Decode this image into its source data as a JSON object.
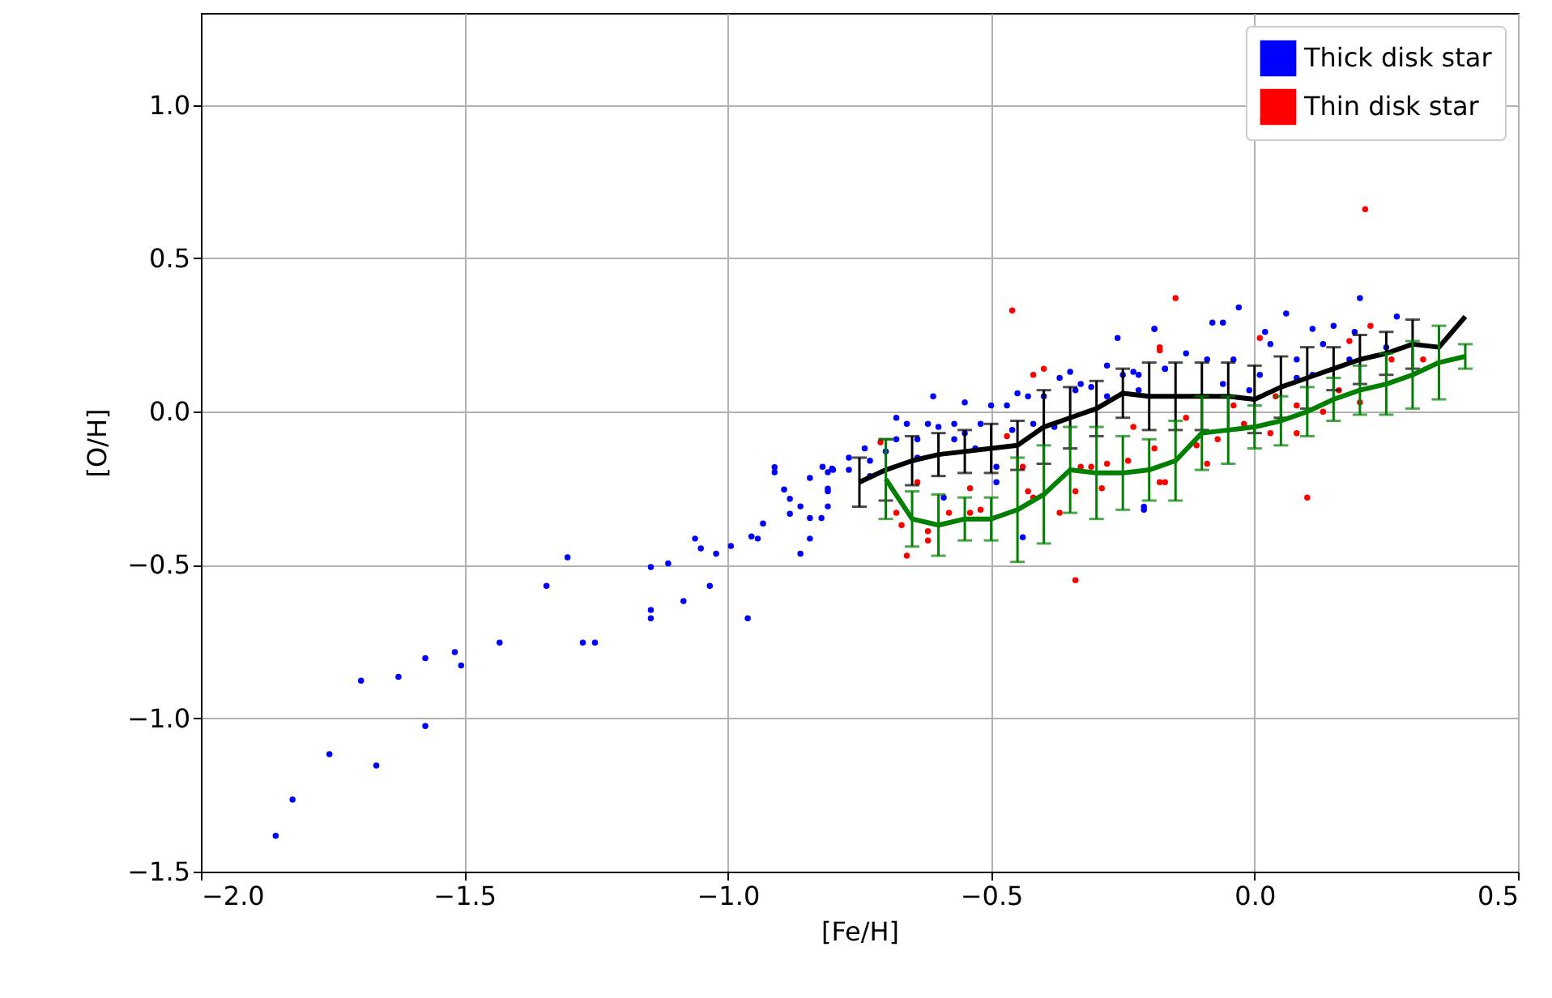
{
  "chart_data": {
    "type": "scatter",
    "xlabel": "[Fe/H]",
    "ylabel": "[O/H]",
    "xlim": [
      -2.0,
      0.5
    ],
    "ylim": [
      -1.5,
      1.3
    ],
    "xticks": [
      {
        "value": -2,
        "label": "−2.0"
      },
      {
        "value": -1.5,
        "label": "−1.5"
      },
      {
        "value": -1,
        "label": "−1.0"
      },
      {
        "value": -0.5,
        "label": "−0.5"
      },
      {
        "value": 0,
        "label": "0.0"
      },
      {
        "value": 0.5,
        "label": "0.5"
      }
    ],
    "yticks": [
      {
        "value": -1.5,
        "label": "−1.5"
      },
      {
        "value": -1,
        "label": "−1.0"
      },
      {
        "value": -0.5,
        "label": "−0.5"
      },
      {
        "value": 0,
        "label": "0.0"
      },
      {
        "value": 0.5,
        "label": "0.5"
      },
      {
        "value": 1,
        "label": "1.0"
      }
    ],
    "grid": true,
    "legend": "top right",
    "series": [
      {
        "name": "Thick disk star",
        "marker": "circle",
        "color": "#0000ff",
        "x": [
          -1.858,
          -1.826,
          -1.756,
          -1.696,
          -1.667,
          -1.625,
          -1.574,
          -1.574,
          -1.518,
          -1.506,
          -1.433,
          -1.344,
          -1.304,
          -1.275,
          -1.252,
          -1.146,
          -1.113,
          -1.146,
          -1.146,
          -1.084,
          -1.062,
          -1.051,
          -1.034,
          -1.022,
          -0.994,
          -0.962,
          -0.955,
          -0.943,
          -0.933,
          -0.911,
          -0.911,
          -0.893,
          -0.882,
          -0.882,
          -0.862,
          -0.862,
          -0.844,
          -0.844,
          -0.844,
          -0.822,
          -0.81,
          -0.81,
          -0.81,
          -0.802,
          -0.82,
          -0.8,
          -0.81,
          -0.77,
          -0.77,
          -0.74,
          -0.73,
          -0.73,
          -0.7,
          -0.68,
          -0.68,
          -0.66,
          -0.64,
          -0.64,
          -0.61,
          -0.62,
          -0.6,
          -0.59,
          -0.57,
          -0.57,
          -0.55,
          -0.55,
          -0.53,
          -0.52,
          -0.5,
          -0.49,
          -0.49,
          -0.47,
          -0.46,
          -0.45,
          -0.44,
          -0.43,
          -0.42,
          -0.4,
          -0.38,
          -0.37,
          -0.35,
          -0.34,
          -0.33,
          -0.31,
          -0.28,
          -0.28,
          -0.26,
          -0.25,
          -0.23,
          -0.22,
          -0.21,
          -0.19,
          -0.17,
          -0.19,
          -0.08,
          -0.06,
          -0.03,
          -0.09,
          -0.04,
          0.02,
          0.03,
          0.06,
          0.11,
          0.15,
          0.2,
          0.27,
          0.19,
          0.08,
          0.13,
          -0.21,
          -0.22,
          -0.17,
          -0.13,
          0.01,
          0.08,
          0.18,
          0.25,
          -0.06,
          -0.01,
          0.11
        ],
        "values": [
          -1.383,
          -1.265,
          -1.117,
          -0.877,
          -1.154,
          -0.865,
          -0.804,
          -1.025,
          -0.784,
          -0.828,
          -0.753,
          -0.568,
          -0.475,
          -0.753,
          -0.753,
          -0.507,
          -0.495,
          -0.647,
          -0.674,
          -0.618,
          -0.414,
          -0.446,
          -0.568,
          -0.463,
          -0.438,
          -0.674,
          -0.407,
          -0.414,
          -0.365,
          -0.181,
          -0.198,
          -0.254,
          -0.284,
          -0.333,
          -0.309,
          -0.463,
          -0.216,
          -0.347,
          -0.414,
          -0.347,
          -0.198,
          -0.251,
          -0.309,
          -0.186,
          -0.18,
          -0.19,
          -0.26,
          -0.15,
          -0.19,
          -0.12,
          -0.16,
          -0.21,
          -0.13,
          -0.09,
          -0.02,
          -0.04,
          -0.09,
          -0.15,
          0.05,
          -0.04,
          -0.05,
          -0.28,
          -0.04,
          -0.09,
          0.03,
          -0.07,
          -0.12,
          -0.04,
          0.02,
          -0.18,
          -0.23,
          0.02,
          -0.06,
          0.06,
          -0.41,
          0.05,
          -0.04,
          0.05,
          -0.05,
          0.11,
          0.13,
          0.07,
          0.09,
          0.08,
          0.15,
          0.05,
          0.24,
          0.12,
          0.13,
          0.07,
          -0.31,
          0.27,
          0.14,
          0.27,
          0.29,
          0.29,
          0.34,
          0.17,
          0.17,
          0.26,
          0.22,
          0.32,
          0.27,
          0.28,
          0.37,
          0.31,
          0.26,
          0.17,
          0.22,
          -0.32,
          0.12,
          0.14,
          0.19,
          0.12,
          0.11,
          0.17,
          0.21,
          0.09,
          0.07,
          0.12
        ]
      },
      {
        "name": "Thin disk star",
        "marker": "circle",
        "color": "#ff0000",
        "x": [
          -0.46,
          -0.42,
          -0.4,
          -0.71,
          -0.68,
          -0.67,
          -0.66,
          -0.64,
          -0.62,
          -0.62,
          -0.58,
          -0.54,
          -0.54,
          -0.52,
          -0.47,
          -0.44,
          -0.43,
          -0.42,
          -0.37,
          -0.34,
          -0.34,
          -0.33,
          -0.31,
          -0.29,
          -0.28,
          -0.24,
          -0.23,
          -0.19,
          -0.18,
          -0.18,
          -0.15,
          0.21,
          0.1,
          0.01,
          0.22,
          0.18,
          -0.18,
          0.26,
          0.32,
          -0.13,
          -0.09,
          -0.07,
          -0.02,
          0.03,
          0.08,
          0.13,
          0.08,
          0.2,
          -0.17,
          -0.11,
          0.04,
          0.16,
          -0.04
        ],
        "values": [
          0.33,
          0.12,
          0.14,
          -0.1,
          -0.33,
          -0.37,
          -0.47,
          -0.23,
          -0.39,
          -0.42,
          -0.33,
          -0.25,
          -0.33,
          -0.32,
          -0.08,
          -0.18,
          -0.26,
          -0.28,
          -0.33,
          -0.55,
          -0.26,
          -0.18,
          -0.18,
          -0.25,
          -0.17,
          -0.16,
          -0.05,
          -0.12,
          0.2,
          -0.23,
          0.37,
          0.66,
          -0.28,
          0.24,
          0.28,
          0.23,
          0.21,
          0.17,
          0.17,
          -0.02,
          -0.17,
          -0.09,
          -0.04,
          -0.07,
          0.02,
          0.0,
          -0.07,
          0.03,
          -0.23,
          -0.11,
          0.05,
          0.07,
          0.02
        ]
      },
      {
        "type": "line",
        "marker": "none",
        "color": "#000000",
        "x": [
          -0.75,
          -0.7,
          -0.65,
          -0.6,
          -0.55,
          -0.5,
          -0.45,
          -0.4,
          -0.35,
          -0.3,
          -0.25,
          -0.2,
          -0.15,
          -0.1,
          -0.05,
          0.0,
          0.05,
          0.1,
          0.15,
          0.2,
          0.25,
          0.3,
          0.35,
          0.4
        ],
        "values": [
          -0.23,
          -0.19,
          -0.16,
          -0.14,
          -0.13,
          -0.12,
          -0.11,
          -0.05,
          -0.02,
          0.01,
          0.06,
          0.05,
          0.05,
          0.05,
          0.05,
          0.04,
          0.08,
          0.11,
          0.14,
          0.17,
          0.19,
          0.22,
          0.21,
          0.31
        ],
        "errors": [
          0.08,
          0.1,
          0.08,
          0.07,
          0.07,
          0.08,
          0.08,
          0.12,
          0.1,
          0.09,
          0.08,
          0.11,
          0.11,
          0.11,
          0.11,
          0.11,
          0.1,
          0.1,
          0.07,
          0.08,
          0.07,
          0.08,
          null,
          null
        ]
      },
      {
        "type": "line",
        "marker": "none",
        "color": "#008000",
        "x": [
          -0.7,
          -0.65,
          -0.6,
          -0.55,
          -0.5,
          -0.45,
          -0.4,
          -0.35,
          -0.3,
          -0.25,
          -0.2,
          -0.15,
          -0.1,
          -0.05,
          0.0,
          0.05,
          0.1,
          0.15,
          0.2,
          0.25,
          0.3,
          0.35,
          0.4
        ],
        "values": [
          -0.22,
          -0.35,
          -0.37,
          -0.35,
          -0.35,
          -0.32,
          -0.27,
          -0.19,
          -0.2,
          -0.2,
          -0.19,
          -0.16,
          -0.07,
          -0.06,
          -0.05,
          -0.03,
          0.0,
          0.04,
          0.07,
          0.09,
          0.12,
          0.16,
          0.18
        ],
        "errors": [
          0.13,
          0.09,
          0.1,
          0.07,
          0.07,
          0.17,
          0.16,
          0.14,
          0.15,
          0.12,
          0.1,
          0.13,
          0.12,
          0.11,
          0.07,
          0.08,
          0.08,
          0.07,
          0.08,
          0.1,
          0.11,
          0.12,
          0.04
        ]
      }
    ]
  }
}
